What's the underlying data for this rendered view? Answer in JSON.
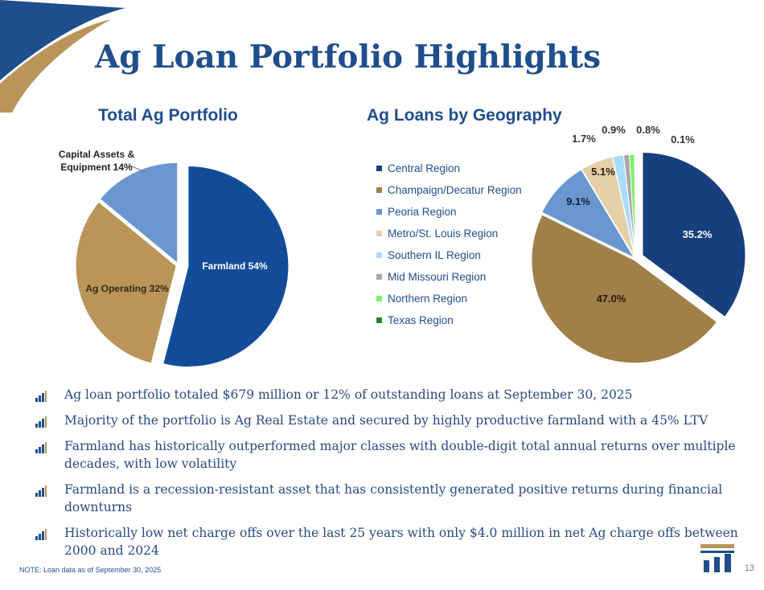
{
  "title": "Ag Loan Portfolio Highlights",
  "colors": {
    "brand_blue": "#1f4e8c",
    "brand_gold": "#b9955a",
    "text_blue": "#2a4a80"
  },
  "chart_data": [
    {
      "type": "pie",
      "title": "Total Ag Portfolio",
      "slices": [
        {
          "label": "Farmland 54%",
          "name": "Farmland",
          "value": 54,
          "color": "#124c99",
          "exploded": true
        },
        {
          "label": "Ag Operating 32%",
          "name": "Ag Operating",
          "value": 32,
          "color": "#b9955a",
          "exploded": false
        },
        {
          "label": "Capital Assets & Equipment 14%",
          "name": "Capital Assets & Equipment",
          "value": 14,
          "color": "#6a97d0",
          "exploded": false
        }
      ]
    },
    {
      "type": "pie",
      "title": "Ag Loans by Geography",
      "legend_position": "left",
      "slices": [
        {
          "name": "Central Region",
          "value": 35.2,
          "label": "35.2%",
          "color": "#173f7e",
          "exploded": true
        },
        {
          "name": "Champaign/Decatur Region",
          "value": 47.0,
          "label": "47.0%",
          "color": "#a17f48",
          "exploded": false
        },
        {
          "name": "Peoria Region",
          "value": 9.1,
          "label": "9.1%",
          "color": "#6a97d0",
          "exploded": false
        },
        {
          "name": "Metro/St. Louis Region",
          "value": 5.1,
          "label": "5.1%",
          "color": "#e4cfa9",
          "exploded": false
        },
        {
          "name": "Southern IL Region",
          "value": 1.7,
          "label": "1.7%",
          "color": "#a8dcf9",
          "exploded": false
        },
        {
          "name": "Mid Missouri Region",
          "value": 0.9,
          "label": "0.9%",
          "color": "#a9a9a9",
          "exploded": false
        },
        {
          "name": "Northern Region",
          "value": 0.8,
          "label": "0.8%",
          "color": "#7ff06a",
          "exploded": false
        },
        {
          "name": "Texas Region",
          "value": 0.1,
          "label": "0.1%",
          "color": "#1f8a2a",
          "exploded": false
        }
      ]
    }
  ],
  "bullets": [
    "Ag loan portfolio totaled $679 million or 12% of outstanding loans at September 30, 2025",
    "Majority of the portfolio is Ag Real Estate and secured by highly productive farmland with a 45% LTV",
    "Farmland has historically outperformed major classes with double-digit total annual returns over multiple decades, with low volatility",
    "Farmland is a recession-resistant asset that has consistently generated positive returns during financial downturns",
    "Historically low net charge offs over the last 25 years with only $4.0 million in net Ag charge offs between 2000 and 2024"
  ],
  "note": "NOTE:  Loan data as of September 30, 2025",
  "page_number": "13"
}
